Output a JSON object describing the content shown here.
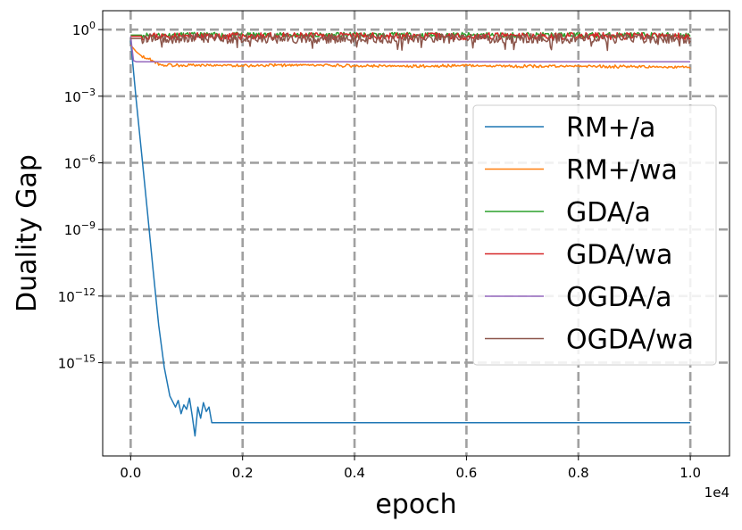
{
  "chart_data": {
    "type": "line",
    "xlabel": "epoch",
    "ylabel": "Duality Gap",
    "x_offset_label": "1e4",
    "xlim": [
      -0.05,
      1.07
    ],
    "ylog10_range": [
      -19.2,
      0.85
    ],
    "x_ticks": [
      {
        "value": 0.0,
        "label": "0.0"
      },
      {
        "value": 0.2,
        "label": "0.2"
      },
      {
        "value": 0.4,
        "label": "0.4"
      },
      {
        "value": 0.6,
        "label": "0.6"
      },
      {
        "value": 0.8,
        "label": "0.8"
      },
      {
        "value": 1.0,
        "label": "1.0"
      }
    ],
    "y_ticks": [
      {
        "exp": 0,
        "base": "10",
        "power": "0"
      },
      {
        "exp": -3,
        "base": "10",
        "power": "−3"
      },
      {
        "exp": -6,
        "base": "10",
        "power": "−6"
      },
      {
        "exp": -9,
        "base": "10",
        "power": "−9"
      },
      {
        "exp": -12,
        "base": "10",
        "power": "−12"
      },
      {
        "exp": -15,
        "base": "10",
        "power": "−15"
      }
    ],
    "grid": true,
    "legend_position": "center-right",
    "series": [
      {
        "name": "RM+/a",
        "color": "#1f77b4",
        "x": [
          0.0,
          0.01,
          0.02,
          0.03,
          0.04,
          0.05,
          0.06,
          0.07,
          0.08,
          0.085,
          0.09,
          0.095,
          0.1,
          0.105,
          0.11,
          0.115,
          0.12,
          0.125,
          0.13,
          0.135,
          0.14,
          0.145,
          0.15,
          1.0
        ],
        "log10_y": [
          -0.5,
          -3.2,
          -5.7,
          -8.2,
          -10.8,
          -13.3,
          -15.2,
          -16.5,
          -17.0,
          -16.7,
          -17.3,
          -16.9,
          -17.1,
          -16.6,
          -17.4,
          -18.3,
          -17.0,
          -17.5,
          -16.8,
          -17.2,
          -17.0,
          -17.7,
          -17.7,
          -17.7
        ]
      },
      {
        "name": "RM+/wa",
        "color": "#ff7f0e",
        "x": [
          0.0,
          0.01,
          0.02,
          0.03,
          0.04,
          0.05,
          0.06,
          0.08,
          0.1,
          0.2,
          0.3,
          0.4,
          0.5,
          0.6,
          0.7,
          0.8,
          0.9,
          1.0
        ],
        "log10_y": [
          -0.7,
          -1.0,
          -1.2,
          -1.3,
          -1.4,
          -1.55,
          -1.6,
          -1.6,
          -1.6,
          -1.62,
          -1.6,
          -1.63,
          -1.65,
          -1.62,
          -1.65,
          -1.65,
          -1.67,
          -1.7
        ]
      },
      {
        "name": "GDA/a",
        "color": "#2ca02c",
        "x": [
          0.0,
          0.1,
          0.2,
          0.3,
          0.4,
          0.5,
          0.6,
          0.7,
          0.8,
          0.9,
          1.0
        ],
        "log10_y": [
          -0.25,
          -0.25,
          -0.25,
          -0.25,
          -0.25,
          -0.25,
          -0.25,
          -0.25,
          -0.25,
          -0.25,
          -0.25
        ]
      },
      {
        "name": "GDA/wa",
        "color": "#d62728",
        "x": [
          0.0,
          0.1,
          0.2,
          0.3,
          0.4,
          0.5,
          0.6,
          0.7,
          0.8,
          0.9,
          1.0
        ],
        "log10_y": [
          -0.3,
          -0.3,
          -0.3,
          -0.3,
          -0.3,
          -0.3,
          -0.3,
          -0.3,
          -0.3,
          -0.3,
          -0.3
        ]
      },
      {
        "name": "OGDA/a",
        "color": "#9467bd",
        "x": [
          0.0,
          0.005,
          0.01,
          1.0
        ],
        "log10_y": [
          -0.3,
          -1.4,
          -1.45,
          -1.45
        ]
      },
      {
        "name": "OGDA/wa",
        "color": "#8c564b",
        "x": [
          0.0,
          0.1,
          0.2,
          0.3,
          0.4,
          0.5,
          0.6,
          0.7,
          0.8,
          0.9,
          1.0
        ],
        "log10_y": [
          -0.4,
          -0.4,
          -0.4,
          -0.4,
          -0.4,
          -0.4,
          -0.4,
          -0.4,
          -0.4,
          -0.4,
          -0.4
        ]
      }
    ]
  }
}
